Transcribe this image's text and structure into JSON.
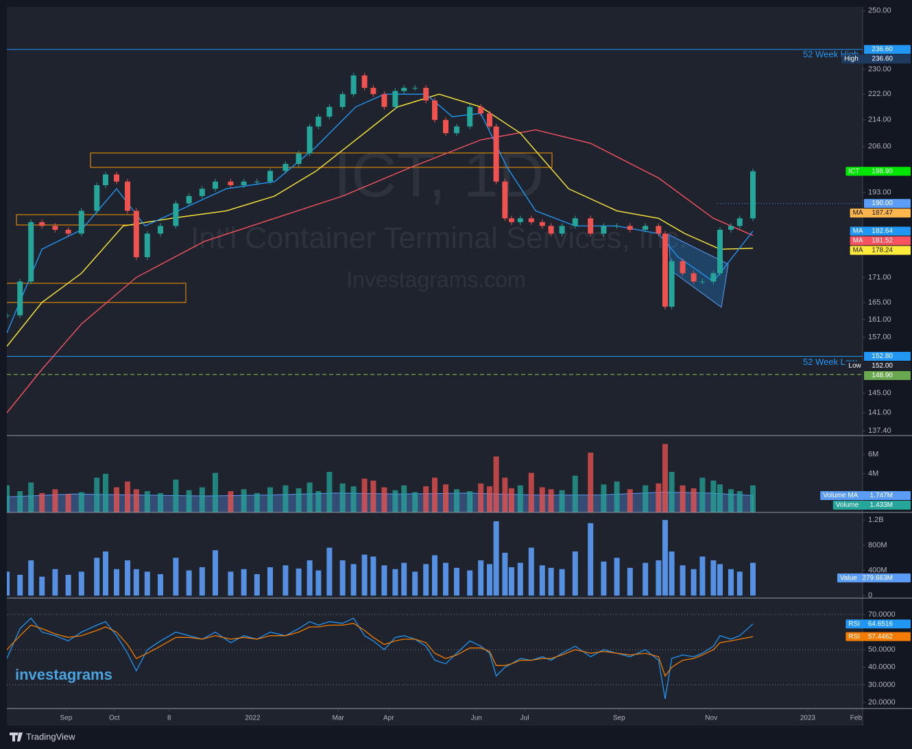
{
  "chart_data": {
    "type": "candlestick",
    "title": "ICT, 1D",
    "subtitle": "Int'l Container Terminal Services, Inc.",
    "watermark": "Investagrams.com",
    "logo": "investagrams",
    "footer": "TradingView",
    "yscale": "log",
    "ylim": [
      136.5,
      251.4
    ],
    "yticks": [
      {
        "value": 250,
        "label": "250.00"
      },
      {
        "value": 230,
        "label": "230.00"
      },
      {
        "value": 222,
        "label": "222.00"
      },
      {
        "value": 214,
        "label": "214.00"
      },
      {
        "value": 206,
        "label": "206.00"
      },
      {
        "value": 193,
        "label": "193.00"
      },
      {
        "value": 171,
        "label": "171.00"
      },
      {
        "value": 165,
        "label": "165.00"
      },
      {
        "value": 161,
        "label": "161.00"
      },
      {
        "value": 157,
        "label": "157.00"
      },
      {
        "value": 145,
        "label": "145.00"
      },
      {
        "value": 141,
        "label": "141.00"
      },
      {
        "value": 137.4,
        "label": "137.40"
      }
    ],
    "xlim": [
      0,
      390
    ],
    "xticks": [
      {
        "value": 27,
        "label": "Sep"
      },
      {
        "value": 49,
        "label": "Oct"
      },
      {
        "value": 74,
        "label": "8"
      },
      {
        "value": 112,
        "label": "2022"
      },
      {
        "value": 151,
        "label": "Mar"
      },
      {
        "value": 174,
        "label": "Apr"
      },
      {
        "value": 214,
        "label": "Jun"
      },
      {
        "value": 236,
        "label": "Jul"
      },
      {
        "value": 279,
        "label": "Sep"
      },
      {
        "value": 321,
        "label": "Nov"
      },
      {
        "value": 365,
        "label": "2023"
      },
      {
        "value": 387,
        "label": "Feb"
      }
    ],
    "up_color": "#26a69a",
    "down_color": "#ef5350",
    "x": [
      0,
      6,
      11,
      16,
      22,
      28,
      34,
      41,
      45,
      50,
      55,
      59,
      64,
      70,
      77,
      83,
      89,
      95,
      102,
      108,
      114,
      120,
      127,
      133,
      138,
      142,
      147,
      153,
      158,
      163,
      167,
      172,
      177,
      181,
      186,
      191,
      195,
      200,
      205,
      211,
      216,
      220,
      223,
      227,
      230,
      234,
      239,
      244,
      248,
      253,
      259,
      266,
      272,
      278,
      284,
      291,
      297,
      300,
      303,
      308,
      313,
      317,
      322,
      325,
      330,
      334,
      340
    ],
    "closes": [
      162,
      170,
      185,
      184,
      183,
      182,
      188,
      195,
      198,
      196,
      188,
      176,
      182,
      184,
      190,
      192,
      194,
      196,
      195,
      196,
      196,
      199,
      201,
      204,
      212,
      215,
      218,
      222,
      228,
      224,
      222,
      218,
      223,
      224,
      224,
      220,
      214,
      210,
      212,
      218,
      216,
      212,
      196,
      186,
      185,
      186,
      185,
      184,
      182,
      184,
      186,
      182,
      184,
      184,
      183,
      184,
      182,
      164,
      175,
      172,
      170,
      170,
      172,
      183,
      184,
      186,
      198.9
    ],
    "series": [
      {
        "name": "MA",
        "color": "#f7525f",
        "x": [
          0,
          16,
          34,
          59,
          90,
          122,
          153,
          184,
          216,
          241,
          266,
          297,
          322,
          340
        ],
        "values": [
          141,
          150,
          160,
          171,
          180,
          186,
          192,
          200,
          208,
          211,
          207,
          197,
          186,
          181.52
        ]
      },
      {
        "name": "MA",
        "color": "#ffeb3b",
        "x": [
          0,
          16,
          34,
          53,
          75,
          100,
          122,
          141,
          159,
          178,
          197,
          216,
          234,
          256,
          278,
          297,
          309,
          325,
          340
        ],
        "values": [
          155,
          165,
          172,
          184,
          186,
          188,
          192,
          199,
          208,
          218,
          222,
          218,
          210,
          194,
          188,
          186,
          182,
          178,
          178.24
        ]
      },
      {
        "name": "MA",
        "color": "#2196f3",
        "x": [
          0,
          16,
          34,
          50,
          63,
          78,
          100,
          122,
          141,
          159,
          172,
          191,
          203,
          216,
          228,
          241,
          259,
          278,
          297,
          306,
          322,
          340
        ],
        "values": [
          158,
          178,
          183,
          194,
          184,
          188,
          194,
          196,
          206,
          218,
          222,
          222,
          215,
          216,
          200,
          188,
          184,
          184,
          182,
          176,
          170,
          182.64
        ]
      }
    ],
    "levels": [
      {
        "value": 236.6,
        "text": "52 Week High",
        "color": "#2196f3",
        "style": "solid"
      },
      {
        "value": 152.8,
        "text": "52 Week Low",
        "color": "#2196f3",
        "style": "solid"
      },
      {
        "value": 148.9,
        "color": "#8bc34a",
        "style": "dashed"
      },
      {
        "value": 190,
        "color": "#5b9cf6",
        "style": "dotted"
      }
    ],
    "badges": [
      {
        "value": 236.6,
        "label": "236.60",
        "color": "#2196f3"
      },
      {
        "tag": "High",
        "value": 236.6,
        "label": "236.60",
        "color": "#1e3a5f"
      },
      {
        "tag": "ICT",
        "value": 198.9,
        "label": "198.90",
        "color": "#00e600"
      },
      {
        "value": 190,
        "label": "190.00",
        "color": "#5b9cf6"
      },
      {
        "tag": "MA",
        "value": 187.47,
        "label": "187.47",
        "color": "#ffb74d"
      },
      {
        "tag": "MA",
        "value": 182.64,
        "label": "182.64",
        "color": "#2196f3"
      },
      {
        "tag": "MA",
        "value": 181.52,
        "label": "181.52",
        "color": "#f7525f"
      },
      {
        "tag": "MA",
        "value": 178.24,
        "label": "178.24",
        "color": "#ffeb3b"
      },
      {
        "value": 152.8,
        "label": "152.80",
        "color": "#2196f3"
      },
      {
        "tag": "Low",
        "value": 152,
        "label": "152.00",
        "color": "#1e222d"
      },
      {
        "value": 148.9,
        "label": "148.90",
        "color": "#6aa84f"
      }
    ],
    "panes": [
      {
        "type": "bar",
        "ylim": [
          0,
          7.9
        ],
        "yticks": [
          {
            "value": 6,
            "label": "6M"
          },
          {
            "value": 4,
            "label": "4M"
          }
        ],
        "values": [
          2.8,
          2.2,
          3.1,
          2.0,
          2.4,
          1.9,
          2.1,
          3.6,
          4.0,
          2.6,
          3.2,
          2.4,
          2.2,
          2.0,
          3.4,
          2.3,
          2.6,
          4.1,
          2.2,
          2.4,
          2.0,
          2.6,
          2.8,
          2.5,
          3.1,
          2.2,
          4.2,
          3.0,
          2.7,
          3.5,
          3.3,
          2.6,
          2.3,
          2.8,
          2.1,
          2.7,
          3.6,
          2.9,
          2.4,
          2.2,
          3.0,
          2.7,
          5.8,
          3.6,
          2.5,
          2.8,
          4.1,
          2.6,
          2.4,
          2.3,
          3.8,
          6.2,
          2.9,
          3.2,
          2.4,
          2.8,
          3.0,
          7.1,
          4.2,
          2.8,
          2.5,
          3.6,
          3.3,
          2.9,
          2.4,
          2.2,
          2.8
        ],
        "ma": {
          "color": "#5b9cf6",
          "x": [
            0,
            30,
            60,
            90,
            120,
            150,
            180,
            210,
            240,
            270,
            300,
            320,
            340
          ],
          "values": [
            1.6,
            1.9,
            1.8,
            1.7,
            1.8,
            2.0,
            1.9,
            2.0,
            1.8,
            1.8,
            2.1,
            2.0,
            1.747
          ]
        },
        "badges": [
          {
            "tag": "Volume MA",
            "value": 1.747,
            "label": "1.747M",
            "color": "#5b9cf6"
          },
          {
            "tag": "Volume",
            "value": 1.433,
            "label": "1.433M",
            "color": "#26a69a"
          }
        ]
      },
      {
        "type": "bar",
        "color": "#5b9cf6",
        "ylim": [
          -40,
          1310
        ],
        "yticks": [
          {
            "value": 1200,
            "label": "1.2B"
          },
          {
            "value": 800,
            "label": "800M"
          },
          {
            "value": 400,
            "label": "400M"
          },
          0
        ],
        "values": [
          380,
          330,
          560,
          300,
          420,
          330,
          380,
          600,
          700,
          420,
          560,
          420,
          380,
          340,
          600,
          400,
          450,
          720,
          380,
          420,
          340,
          450,
          480,
          430,
          560,
          400,
          760,
          560,
          500,
          650,
          620,
          480,
          420,
          520,
          380,
          500,
          640,
          520,
          440,
          400,
          560,
          500,
          1180,
          680,
          450,
          520,
          760,
          480,
          440,
          420,
          700,
          1150,
          540,
          600,
          440,
          520,
          560,
          1200,
          700,
          480,
          420,
          620,
          560,
          500,
          420,
          380,
          520
        ],
        "badges": [
          {
            "tag": "Value",
            "value": 279.663,
            "label": "279.663M",
            "color": "#5b9cf6"
          }
        ]
      },
      {
        "type": "line",
        "ylim": [
          16.5,
          79
        ],
        "yticks": [
          {
            "value": 70,
            "label": "70.0000"
          },
          {
            "value": 50,
            "label": "50.0000"
          },
          {
            "value": 40,
            "label": "40.0000"
          },
          {
            "value": 30,
            "label": "30.0000"
          },
          {
            "value": 20,
            "label": "20.0000"
          }
        ],
        "levels": [
          70,
          50,
          30
        ],
        "series": [
          {
            "name": "RSI",
            "color": "#2196f3",
            "values": [
              45,
              62,
              68,
              60,
              58,
              55,
              60,
              64,
              66,
              58,
              48,
              38,
              50,
              55,
              60,
              58,
              56,
              60,
              54,
              58,
              56,
              60,
              58,
              62,
              66,
              64,
              66,
              65,
              68,
              58,
              55,
              50,
              57,
              58,
              56,
              52,
              44,
              42,
              48,
              55,
              52,
              48,
              35,
              40,
              42,
              45,
              44,
              46,
              44,
              48,
              52,
              46,
              50,
              48,
              46,
              50,
              44,
              22,
              45,
              47,
              46,
              48,
              52,
              58,
              56,
              58,
              64.6516
            ]
          },
          {
            "name": "RSI",
            "color": "#f57c00",
            "values": [
              50,
              58,
              64,
              62,
              59,
              57,
              58,
              61,
              63,
              60,
              53,
              45,
              48,
              52,
              57,
              57,
              56,
              58,
              56,
              57,
              56,
              58,
              58,
              60,
              63,
              63,
              64,
              64,
              65,
              61,
              57,
              53,
              55,
              56,
              56,
              54,
              48,
              45,
              47,
              51,
              51,
              49,
              41,
              41,
              42,
              44,
              44,
              45,
              45,
              47,
              50,
              48,
              49,
              48,
              47,
              48,
              46,
              35,
              40,
              44,
              45,
              47,
              50,
              54,
              55,
              56,
              57.4462
            ]
          }
        ],
        "badges": [
          {
            "tag": "RSI",
            "value": 64.6516,
            "color": "#2196f3"
          },
          {
            "tag": "RSI",
            "value": 57.4462,
            "color": "#f57c00"
          }
        ]
      }
    ]
  }
}
